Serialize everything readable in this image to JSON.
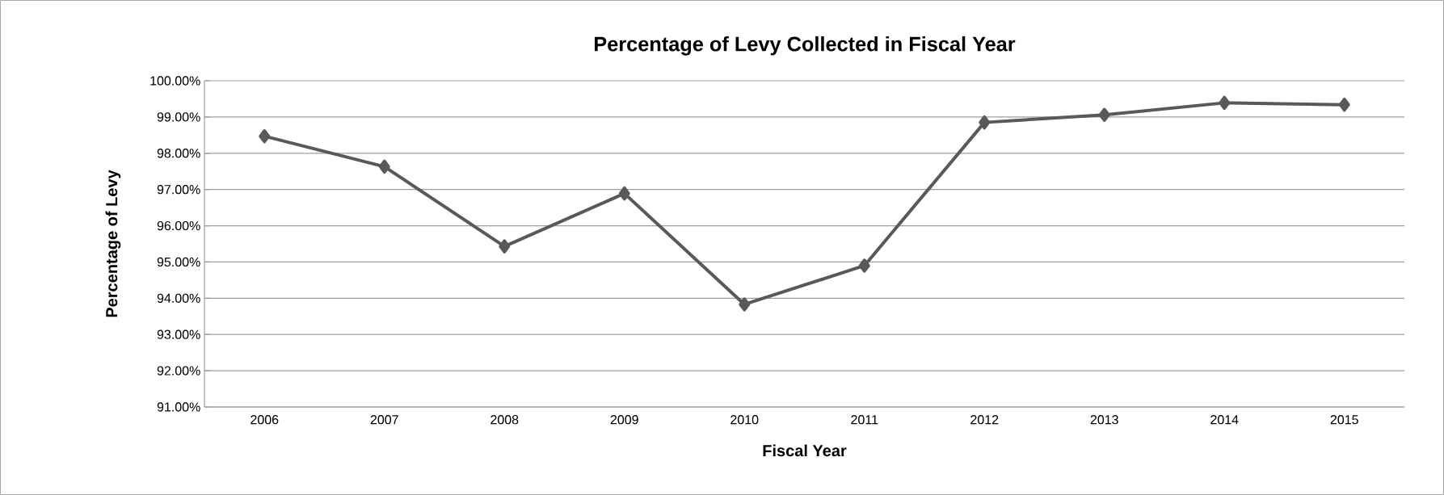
{
  "chart_data": {
    "type": "line",
    "title": "Percentage of Levy Collected in Fiscal Year",
    "xlabel": "Fiscal Year",
    "ylabel": "Percentage of Levy",
    "categories": [
      "2006",
      "2007",
      "2008",
      "2009",
      "2010",
      "2011",
      "2012",
      "2013",
      "2014",
      "2015"
    ],
    "series": [
      {
        "color": "#595959",
        "values": [
          98.47,
          97.63,
          95.43,
          96.89,
          93.83,
          94.9,
          98.85,
          99.06,
          99.39,
          99.34
        ]
      }
    ],
    "ylim": [
      91,
      100
    ],
    "yticks": [
      {
        "value": 91,
        "label": "91.00%"
      },
      {
        "value": 92,
        "label": "92.00%"
      },
      {
        "value": 93,
        "label": "93.00%"
      },
      {
        "value": 94,
        "label": "94.00%"
      },
      {
        "value": 95,
        "label": "95.00%"
      },
      {
        "value": 96,
        "label": "96.00%"
      },
      {
        "value": 97,
        "label": "97.00%"
      },
      {
        "value": 98,
        "label": "98.00%"
      },
      {
        "value": 99,
        "label": "99.00%"
      },
      {
        "value": 100,
        "label": "100.00%"
      }
    ],
    "grid": "y",
    "marker": "diamond",
    "line_style": "solid"
  }
}
